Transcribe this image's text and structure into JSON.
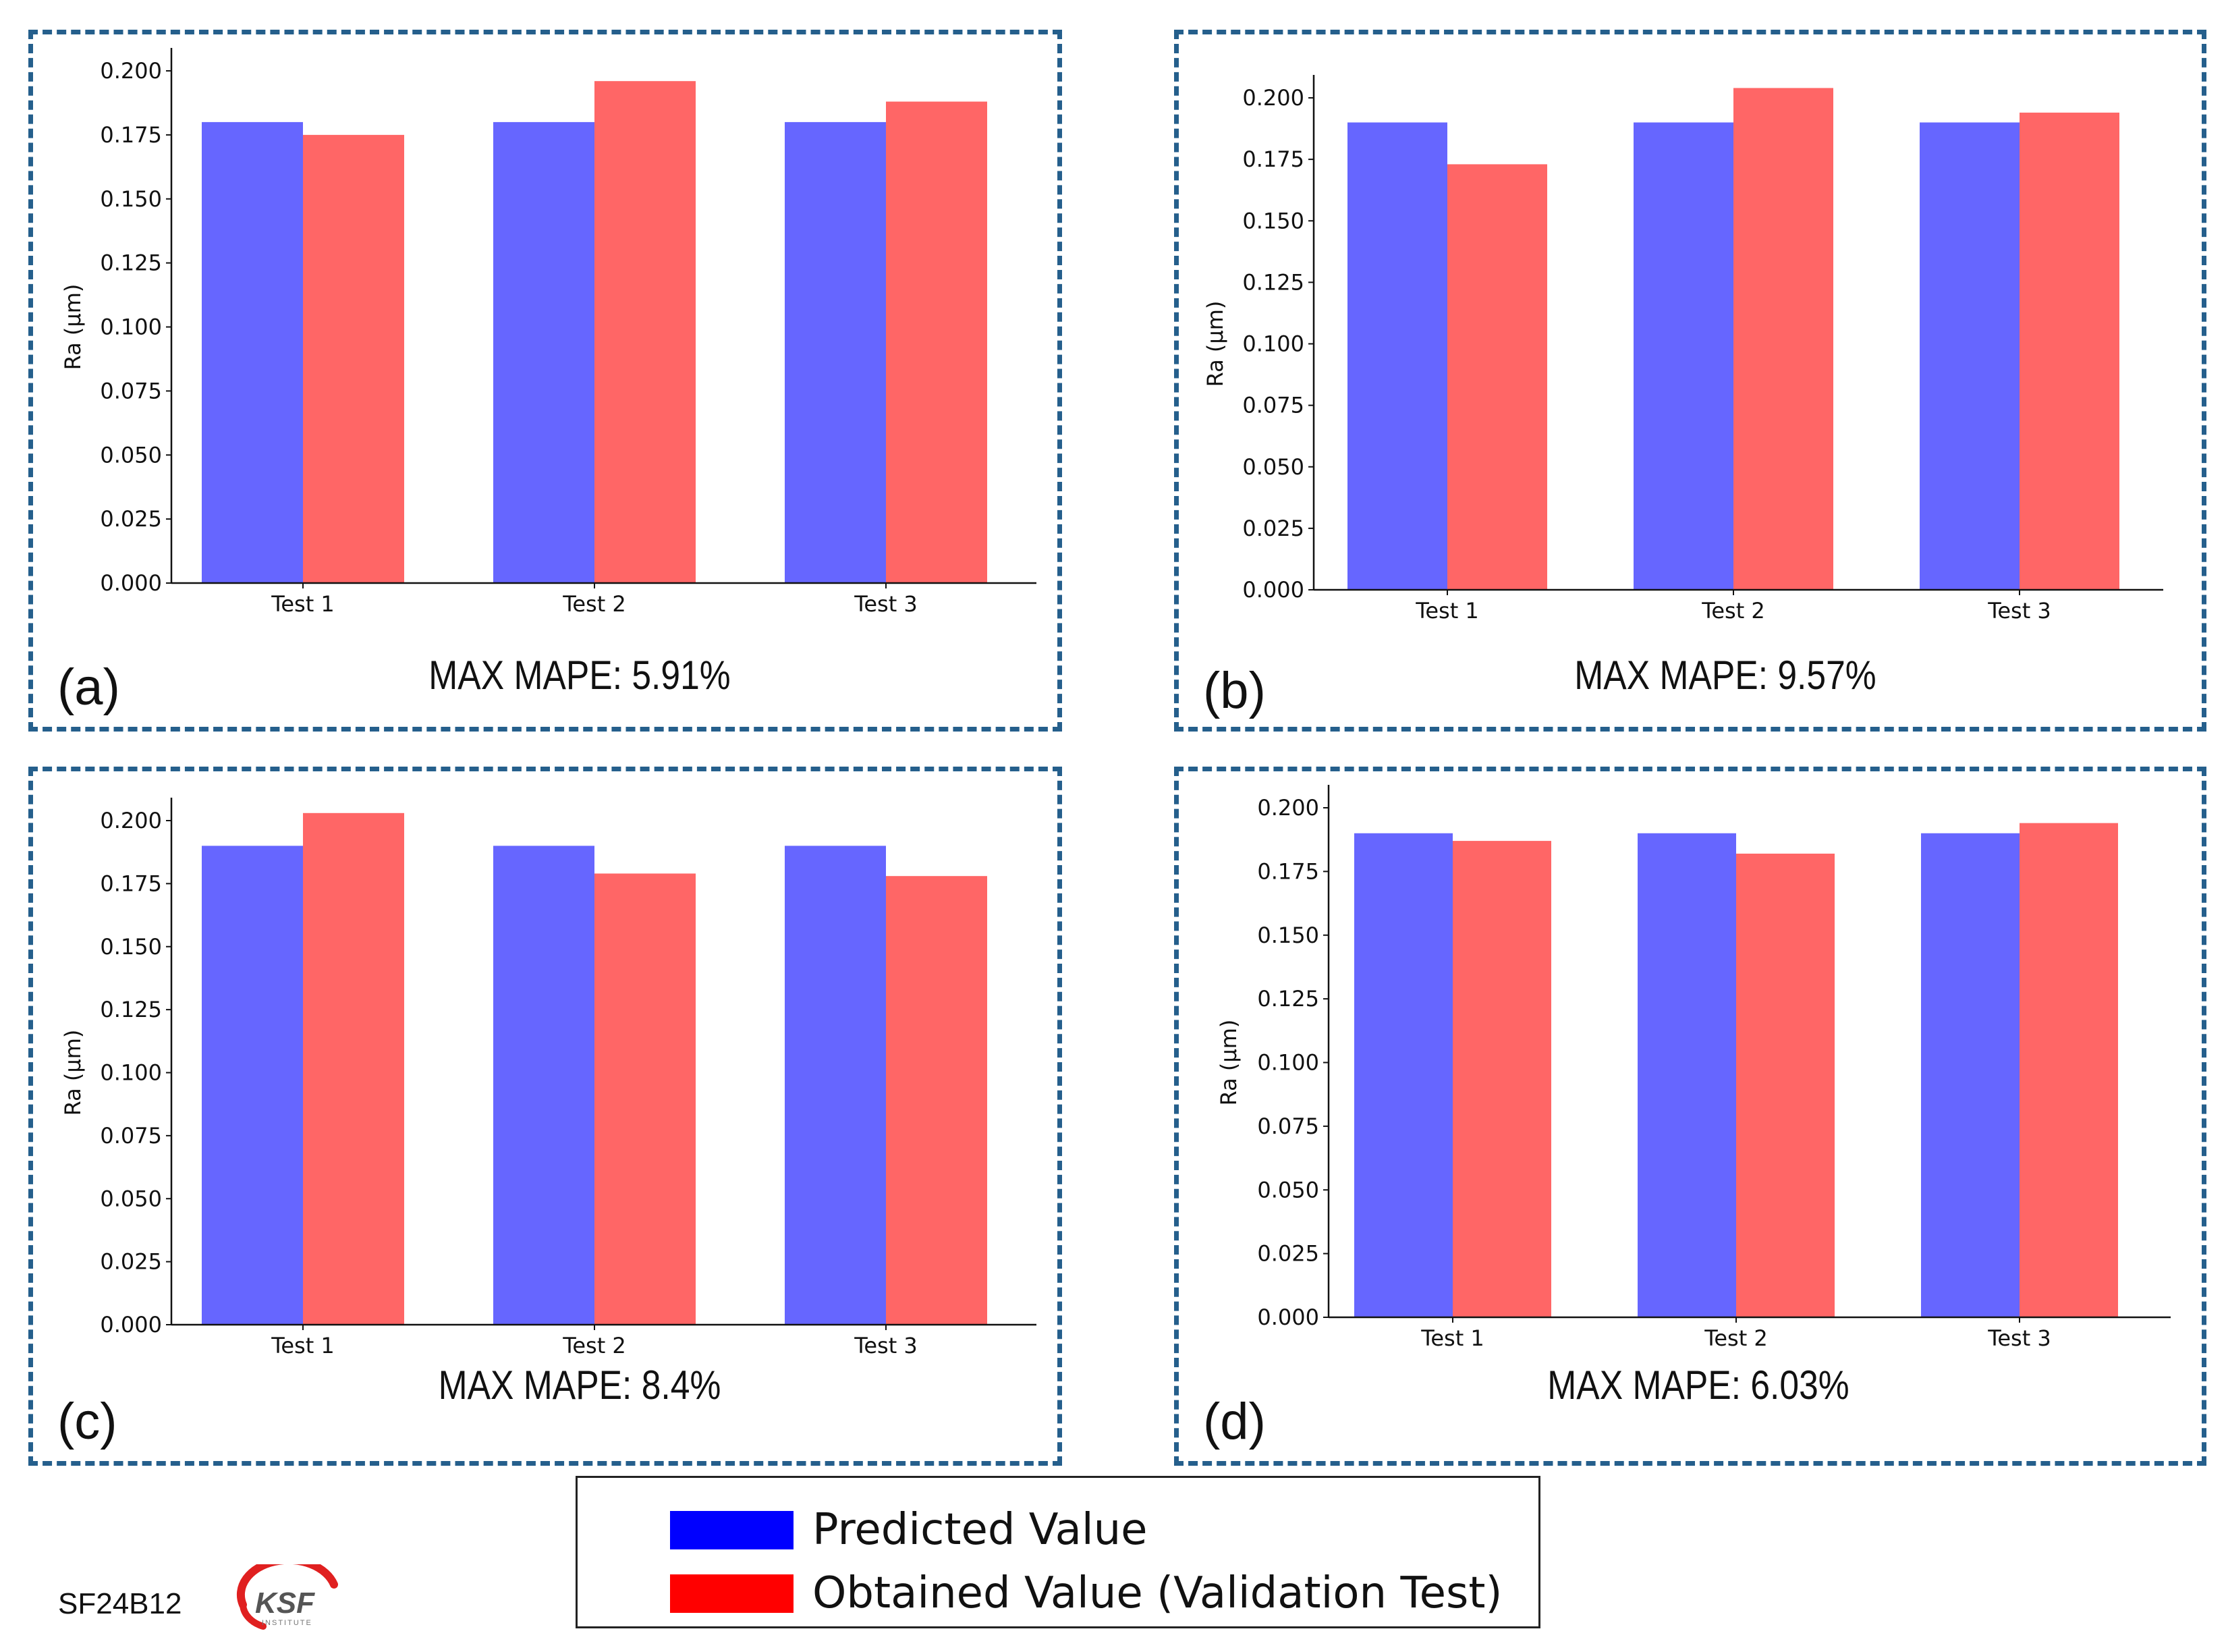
{
  "series_colors": {
    "predicted": "#6666ff",
    "obtained": "#ff6666"
  },
  "chart_data": [
    {
      "type": "bar",
      "panel": "(a)",
      "categories": [
        "Test 1",
        "Test 2",
        "Test 3"
      ],
      "series": [
        {
          "name": "Predicted Value",
          "values": [
            0.18,
            0.18,
            0.18
          ]
        },
        {
          "name": "Obtained Value (Validation Test)",
          "values": [
            0.175,
            0.196,
            0.188
          ]
        }
      ],
      "ylabel": "Ra (µm)",
      "ylim": [
        0,
        0.2
      ],
      "yticks": [
        "0.000",
        "0.025",
        "0.050",
        "0.075",
        "0.100",
        "0.125",
        "0.150",
        "0.175",
        "0.200"
      ],
      "annotation": "MAX MAPE: 5.91%"
    },
    {
      "type": "bar",
      "panel": "(b)",
      "categories": [
        "Test 1",
        "Test 2",
        "Test 3"
      ],
      "series": [
        {
          "name": "Predicted Value",
          "values": [
            0.19,
            0.19,
            0.19
          ]
        },
        {
          "name": "Obtained Value (Validation Test)",
          "values": [
            0.173,
            0.204,
            0.194
          ]
        }
      ],
      "ylabel": "Ra (µm)",
      "ylim": [
        0,
        0.2
      ],
      "yticks": [
        "0.000",
        "0.025",
        "0.050",
        "0.075",
        "0.100",
        "0.125",
        "0.150",
        "0.175",
        "0.200"
      ],
      "annotation": "MAX MAPE: 9.57%"
    },
    {
      "type": "bar",
      "panel": "(c)",
      "categories": [
        "Test 1",
        "Test 2",
        "Test 3"
      ],
      "series": [
        {
          "name": "Predicted Value",
          "values": [
            0.19,
            0.19,
            0.19
          ]
        },
        {
          "name": "Obtained Value (Validation Test)",
          "values": [
            0.203,
            0.179,
            0.178
          ]
        }
      ],
      "ylabel": "Ra (µm)",
      "ylim": [
        0,
        0.2
      ],
      "yticks": [
        "0.000",
        "0.025",
        "0.050",
        "0.075",
        "0.100",
        "0.125",
        "0.150",
        "0.175",
        "0.200"
      ],
      "annotation": "MAX MAPE: 8.4%"
    },
    {
      "type": "bar",
      "panel": "(d)",
      "categories": [
        "Test 1",
        "Test 2",
        "Test 3"
      ],
      "series": [
        {
          "name": "Predicted Value",
          "values": [
            0.19,
            0.19,
            0.19
          ]
        },
        {
          "name": "Obtained Value (Validation Test)",
          "values": [
            0.187,
            0.182,
            0.194
          ]
        }
      ],
      "ylabel": "Ra (µm)",
      "ylim": [
        0,
        0.2
      ],
      "yticks": [
        "0.000",
        "0.025",
        "0.050",
        "0.075",
        "0.100",
        "0.125",
        "0.150",
        "0.175",
        "0.200"
      ],
      "annotation": "MAX MAPE: 6.03%"
    }
  ],
  "legend": {
    "predicted": "Predicted Value",
    "obtained": "Obtained Value (Validation Test)",
    "predicted_color": "#0000ff",
    "obtained_color": "#ff0000"
  },
  "footer": {
    "code": "SF24B12",
    "logo_text": "KSF",
    "logo_subtext": "INSTITUTE"
  }
}
